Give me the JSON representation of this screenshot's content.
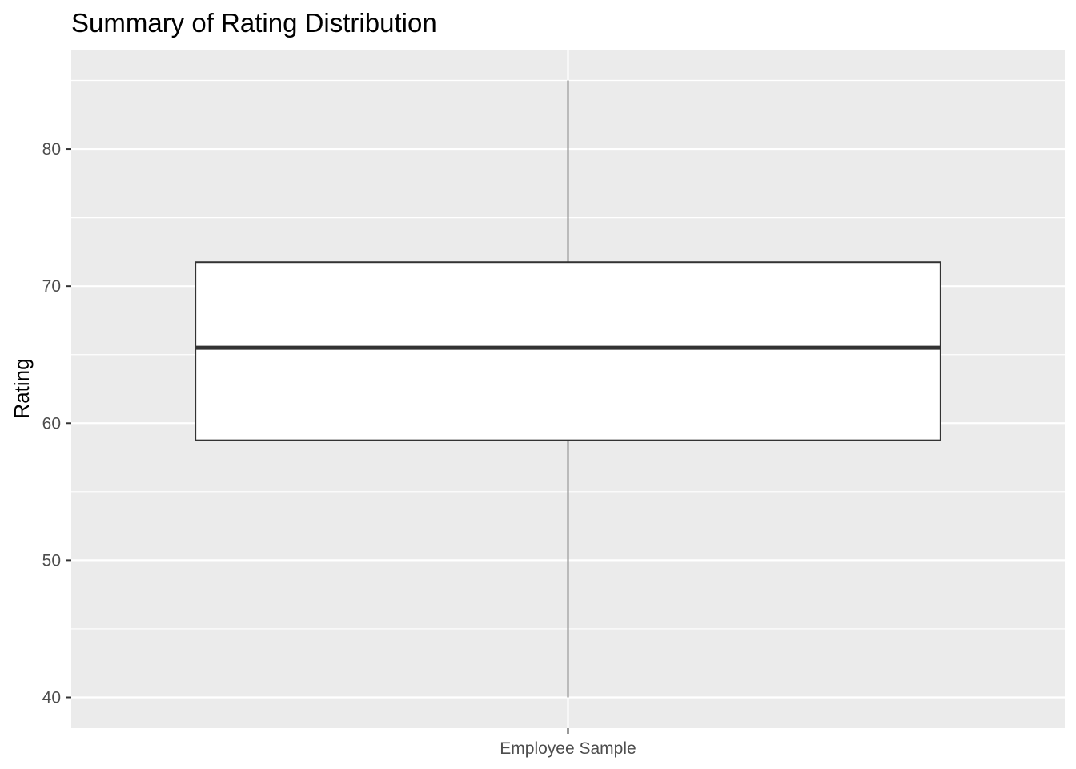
{
  "chart_data": {
    "type": "box",
    "title": "Summary of Rating Distribution",
    "xlabel": "",
    "ylabel": "Rating",
    "categories": [
      "Employee Sample"
    ],
    "boxes": [
      {
        "category": "Employee Sample",
        "min": 40,
        "q1": 58.75,
        "median": 65.5,
        "q3": 71.75,
        "max": 85
      }
    ],
    "ylim": [
      37.75,
      87.25
    ],
    "yticks": [
      40,
      50,
      60,
      70,
      80
    ],
    "ytick_labels": [
      "40",
      "50",
      "60",
      "70",
      "80"
    ],
    "grid": true,
    "legend": "none",
    "colors": {
      "panel_background": "#ebebeb",
      "grid": "#ffffff",
      "box_fill": "#ffffff",
      "box_outline": "#333333",
      "tick": "#333333",
      "tick_label": "#4d4d4d"
    }
  }
}
